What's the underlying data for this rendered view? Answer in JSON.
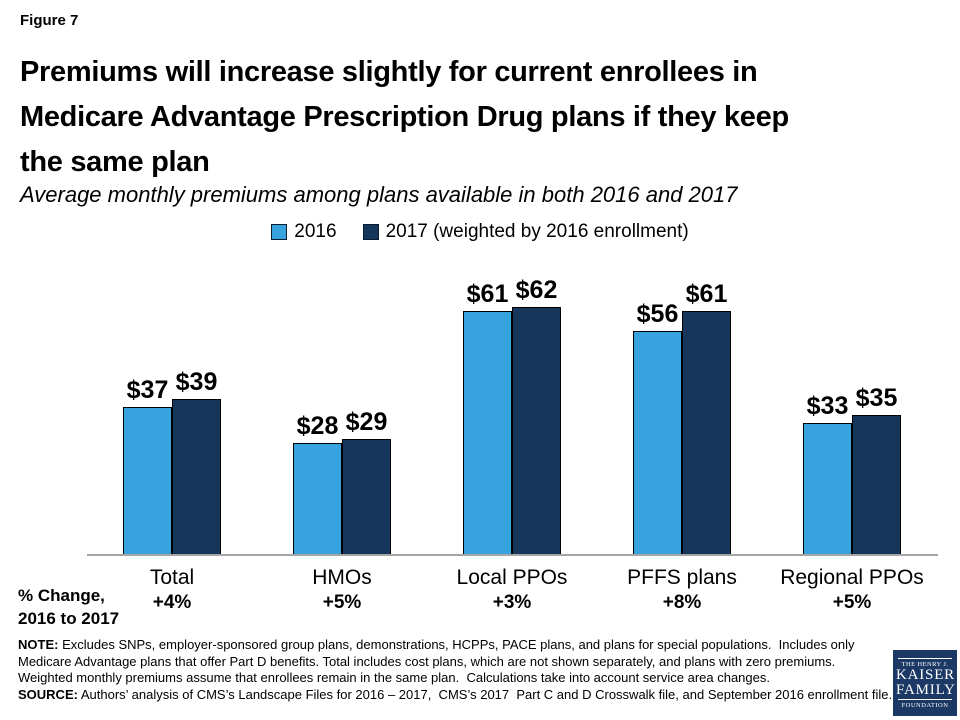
{
  "figure_label": "Figure 7",
  "title": "Premiums will increase slightly for current enrollees in\nMedicare Advantage Prescription Drug plans if they keep\nthe same plan",
  "subtitle": "Average monthly premiums among plans available in both 2016 and 2017",
  "legend": {
    "series1": "2016",
    "series2": "2017 (weighted by 2016 enrollment)"
  },
  "colors": {
    "series1": "#36a2de",
    "series2": "#16365c",
    "axis": "#a6a6a6",
    "logo_bg": "#1c3965"
  },
  "chart_data": {
    "type": "bar",
    "categories": [
      "Total",
      "HMOs",
      "Local PPOs",
      "PFFS plans",
      "Regional PPOs"
    ],
    "series": [
      {
        "name": "2016",
        "values": [
          37,
          28,
          61,
          56,
          33
        ],
        "color": "#36a2de"
      },
      {
        "name": "2017 (weighted by 2016 enrollment)",
        "values": [
          39,
          29,
          62,
          61,
          35
        ],
        "color": "#16365c"
      }
    ],
    "value_labels": [
      [
        "$37",
        "$39"
      ],
      [
        "$28",
        "$29"
      ],
      [
        "$61",
        "$62"
      ],
      [
        "$56",
        "$61"
      ],
      [
        "$33",
        "$35"
      ]
    ],
    "pct_change": [
      "+4%",
      "+5%",
      "+3%",
      "+8%",
      "+5%"
    ],
    "title": "Average monthly premiums among plans available in both 2016 and 2017",
    "xlabel": "",
    "ylabel": "",
    "ylim": [
      0,
      70
    ],
    "grid": false,
    "legend_position": "top"
  },
  "pct_change_label": "% Change,\n2016 to 2017",
  "notes": {
    "note_label": "NOTE:",
    "note_text": "Excludes SNPs, employer-sponsored group plans, demonstrations, HCPPs, PACE plans, and plans for special populations.  Includes only\nMedicare Advantage plans that offer Part D benefits. Total includes cost plans, which are not shown separately, and plans with zero premiums.\nWeighted monthly premiums assume that enrollees remain in the same plan.  Calculations take into account service area changes.",
    "source_label": "SOURCE:",
    "source_text": "Authors’ analysis of CMS’s Landscape Files for 2016 – 2017,  CMS’s 2017  Part C and D Crosswalk file, and September 2016 enrollment file."
  },
  "logo": {
    "line1": "THE HENRY J.",
    "line2": "KAISER",
    "line3": "FAMILY",
    "line4": "FOUNDATION"
  }
}
